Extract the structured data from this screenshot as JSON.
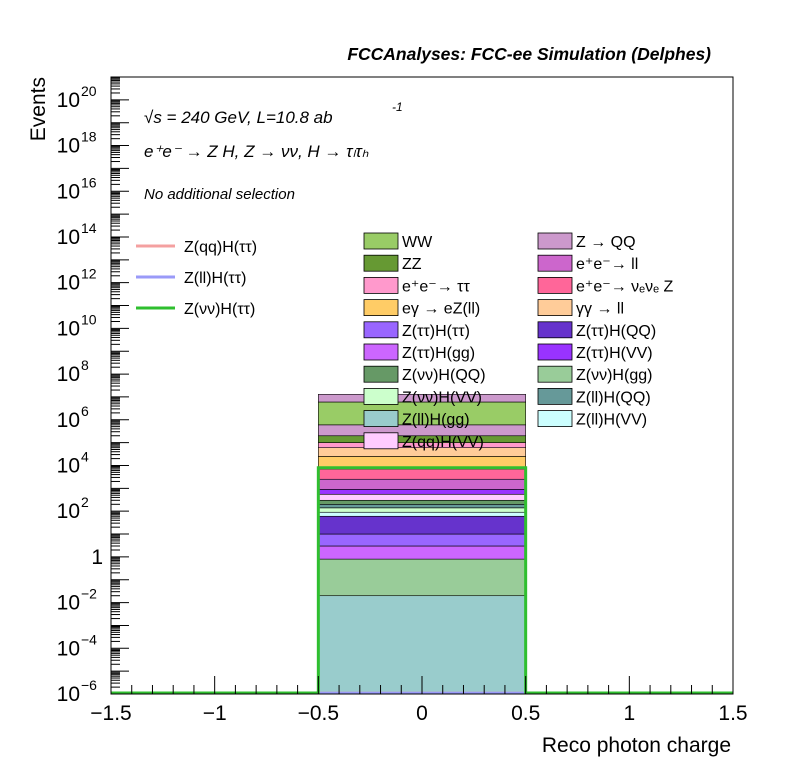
{
  "chart_data": {
    "type": "bar",
    "title": "FCCAnalyses: FCC-ee Simulation (Delphes)",
    "xlabel": "Reco photon charge",
    "ylabel": "Events",
    "log_y": true,
    "xlim": [
      -1.5,
      1.5
    ],
    "ylim": [
      1e-06,
      1e+21
    ],
    "x_ticks": [
      "−1.5",
      "−1",
      "−0.5",
      "0",
      "0.5",
      "1",
      "1.5"
    ],
    "x_tick_values": [
      -1.5,
      -1,
      -0.5,
      0,
      0.5,
      1,
      1.5
    ],
    "y_ticks": [
      {
        "base": "10",
        "exp": "20",
        "value": 1e+20
      },
      {
        "base": "10",
        "exp": "18",
        "value": 1e+18
      },
      {
        "base": "10",
        "exp": "16",
        "value": 1e+16
      },
      {
        "base": "10",
        "exp": "14",
        "value": 100000000000000.0
      },
      {
        "base": "10",
        "exp": "12",
        "value": 1000000000000.0
      },
      {
        "base": "10",
        "exp": "10",
        "value": 10000000000.0
      },
      {
        "base": "10",
        "exp": "8",
        "value": 100000000.0
      },
      {
        "base": "10",
        "exp": "6",
        "value": 1000000.0
      },
      {
        "base": "10",
        "exp": "4",
        "value": 10000.0
      },
      {
        "base": "10",
        "exp": "2",
        "value": 100.0
      },
      {
        "base": "1",
        "exp": "",
        "value": 1
      },
      {
        "base": "10",
        "exp": "−2",
        "value": 0.01
      },
      {
        "base": "10",
        "exp": "−4",
        "value": 0.0001
      },
      {
        "base": "10",
        "exp": "−6",
        "value": 1e-06
      }
    ],
    "annotations": {
      "energy_line": "√s = 240 GeV, L=10.8 ab",
      "energy_exp": "-1",
      "process_line": "e⁺e⁻ → Z H, Z → νν, H → τₗτₕ",
      "selection": "No additional selection"
    },
    "bin": {
      "x_low": -0.5,
      "x_high": 0.5
    },
    "signal_series": [
      {
        "name": "Z(qq)H(ττ)",
        "color": "#f4a0a0",
        "value": 1e-06
      },
      {
        "name": "Z(ll)H(ττ)",
        "color": "#9a9af8",
        "value": 1e-06
      },
      {
        "name": "Z(νν)H(ττ)",
        "color": "#2fbf2f",
        "value": 8000
      }
    ],
    "background_legend": [
      {
        "name": "WW",
        "color": "#99cc66"
      },
      {
        "name": "Z → QQ",
        "color": "#cc99cc"
      },
      {
        "name": "ZZ",
        "color": "#669933"
      },
      {
        "name": "e⁺e⁻→ ll",
        "color": "#cc66cc"
      },
      {
        "name": "e⁺e⁻→ ττ",
        "color": "#ff99cc"
      },
      {
        "name": "e⁺e⁻→ νₑνₑ Z",
        "color": "#ff6699"
      },
      {
        "name": "eγ → eZ(ll)",
        "color": "#ffcc66"
      },
      {
        "name": "γγ → ll",
        "color": "#ffcc99"
      },
      {
        "name": "Z(ττ)H(ττ)",
        "color": "#9966ff"
      },
      {
        "name": "Z(ττ)H(QQ)",
        "color": "#6633cc"
      },
      {
        "name": "Z(ττ)H(gg)",
        "color": "#cc66ff"
      },
      {
        "name": "Z(ττ)H(VV)",
        "color": "#9933ff"
      },
      {
        "name": "Z(νν)H(QQ)",
        "color": "#669966"
      },
      {
        "name": "Z(νν)H(gg)",
        "color": "#99cc99"
      },
      {
        "name": "Z(νν)H(VV)",
        "color": "#ccffcc"
      },
      {
        "name": "Z(ll)H(QQ)",
        "color": "#669999"
      },
      {
        "name": "Z(ll)H(gg)",
        "color": "#99cccc"
      },
      {
        "name": "Z(ll)H(VV)",
        "color": "#ccffff"
      },
      {
        "name": "Z(qq)H(VV)",
        "color": "#ffccff"
      }
    ],
    "stack_bands": [
      {
        "name": "Z(ll)H(gg)",
        "color": "#99cccc",
        "low": 1e-06,
        "high": 0.02
      },
      {
        "name": "Z(νν)H(gg)",
        "color": "#99cc99",
        "low": 0.02,
        "high": 0.8
      },
      {
        "name": "Z(ττ)H(gg)",
        "color": "#cc66ff",
        "low": 0.8,
        "high": 3
      },
      {
        "name": "Z(ττ)H(ττ)",
        "color": "#9966ff",
        "low": 3,
        "high": 10
      },
      {
        "name": "Z(ττ)H(QQ)",
        "color": "#6633cc",
        "low": 10,
        "high": 60
      },
      {
        "name": "Z(ll)H(VV)",
        "color": "#ccffff",
        "low": 60,
        "high": 90
      },
      {
        "name": "Z(νν)H(VV)",
        "color": "#ccffcc",
        "low": 90,
        "high": 140
      },
      {
        "name": "Z(ll)H(QQ)",
        "color": "#669999",
        "low": 140,
        "high": 200
      },
      {
        "name": "Z(νν)H(QQ)",
        "color": "#669966",
        "low": 200,
        "high": 300
      },
      {
        "name": "Z(qq)H(VV)",
        "color": "#ffccff",
        "low": 300,
        "high": 550
      },
      {
        "name": "Z(ττ)H(VV)",
        "color": "#9933ff",
        "low": 550,
        "high": 900
      },
      {
        "name": "e⁺e⁻→ ll",
        "color": "#cc66cc",
        "low": 900,
        "high": 2500
      },
      {
        "name": "e⁺e⁻→ νₑνₑ Z",
        "color": "#ff6699",
        "low": 2500,
        "high": 7000
      },
      {
        "name": "eγ → eZ(ll)",
        "color": "#ffcc66",
        "low": 7000,
        "high": 25000
      },
      {
        "name": "γγ → ll",
        "color": "#ffcc99",
        "low": 25000,
        "high": 60000
      },
      {
        "name": "e⁺e⁻→ ττ",
        "color": "#ff99cc",
        "low": 60000,
        "high": 100000
      },
      {
        "name": "ZZ",
        "color": "#669933",
        "low": 100000,
        "high": 200000
      },
      {
        "name": "Z → QQ",
        "color": "#cc99cc",
        "low": 200000,
        "high": 600000
      },
      {
        "name": "WW",
        "color": "#99cc66",
        "low": 600000,
        "high": 6000000
      },
      {
        "name": "Z → QQ",
        "color": "#cc99cc",
        "low": 6000000,
        "high": 13000000
      }
    ]
  }
}
